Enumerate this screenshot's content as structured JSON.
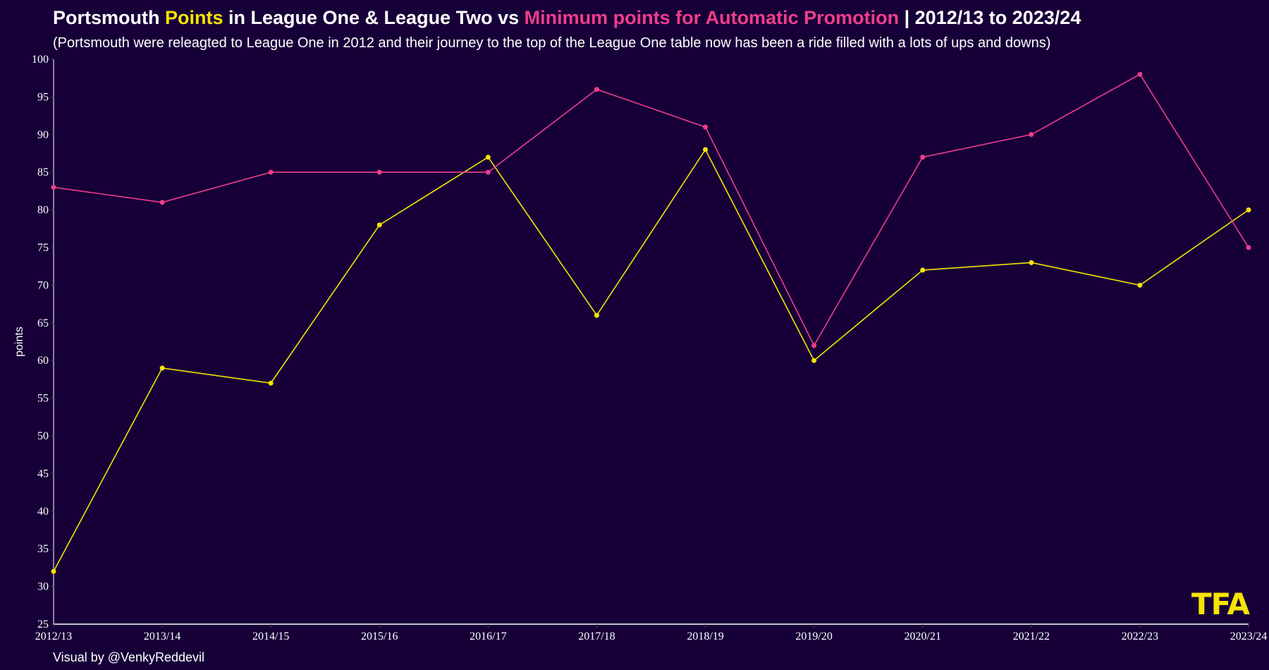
{
  "title": {
    "part1": "Portsmouth ",
    "part2": "Points",
    "part3": " in League One & League Two vs ",
    "part4": "Minimum points for Automatic Promotion",
    "part5": " | 2012/13 to 2023/24"
  },
  "subtitle": "(Portsmouth were releagted to League One in 2012 and their journey to the top of the League One table now has been a ride filled with a lots of ups and downs)",
  "caption": "Visual by @VenkyReddevil",
  "logo": "TFA",
  "colors": {
    "background": "#170038",
    "points": "#f5e400",
    "promotion": "#f03d8a"
  },
  "chart_data": {
    "type": "line",
    "title": "Portsmouth Points in League One & League Two vs Minimum points for Automatic Promotion | 2012/13 to 2023/24",
    "xlabel": "",
    "ylabel": "points",
    "ylim": [
      25,
      100
    ],
    "yticks": [
      25,
      30,
      35,
      40,
      45,
      50,
      55,
      60,
      65,
      70,
      75,
      80,
      85,
      90,
      95,
      100
    ],
    "categories": [
      "2012/13",
      "2013/14",
      "2014/15",
      "2015/16",
      "2016/17",
      "2017/18",
      "2018/19",
      "2019/20",
      "2020/21",
      "2021/22",
      "2022/23",
      "2023/24"
    ],
    "series": [
      {
        "name": "Points",
        "color": "#f5e400",
        "values": [
          32,
          59,
          57,
          78,
          87,
          66,
          88,
          60,
          72,
          73,
          70,
          80
        ]
      },
      {
        "name": "Minimum points for Automatic Promotion",
        "color": "#f03d8a",
        "values": [
          83,
          81,
          85,
          85,
          85,
          96,
          91,
          62,
          87,
          90,
          98,
          75
        ]
      }
    ],
    "grid": false
  }
}
